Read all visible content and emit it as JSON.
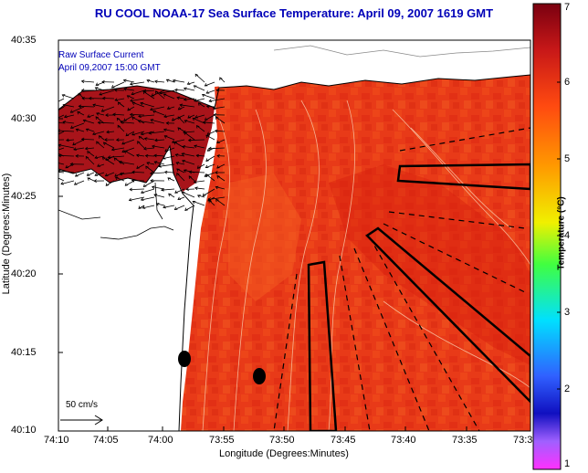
{
  "header": {
    "title": "RU COOL  NOAA-17  Sea Surface Temperature:  April 09, 2007 1619 GMT"
  },
  "overlay_text": {
    "line1": "Raw Surface Current",
    "line2": "April 09,2007 15:00 GMT"
  },
  "axes": {
    "xlabel": "Longitude (Degrees:Minutes)",
    "ylabel": "Latitude (Degrees:Minutes)",
    "xticks": [
      "74:10",
      "74:05",
      "74:00",
      "73:55",
      "73:50",
      "73:45",
      "73:40",
      "73:35",
      "73:3"
    ],
    "yticks": [
      "40:35",
      "40:30",
      "40:25",
      "40:20",
      "40:15",
      "40:10"
    ]
  },
  "scale_bar": {
    "label": "50 cm/s"
  },
  "colorbar": {
    "label": "Temperature (°C)",
    "min": 1,
    "max": 7,
    "ticks": [
      "7",
      "6",
      "5",
      "4",
      "3",
      "2",
      "1"
    ],
    "colors": [
      "#7a0010",
      "#c81818",
      "#ff4a10",
      "#ff9a00",
      "#f0f000",
      "#40ff40",
      "#00e0ff",
      "#3060ff",
      "#1010c0",
      "#ff30ff"
    ]
  },
  "markers": {
    "count": 2,
    "color": "#000000"
  }
}
